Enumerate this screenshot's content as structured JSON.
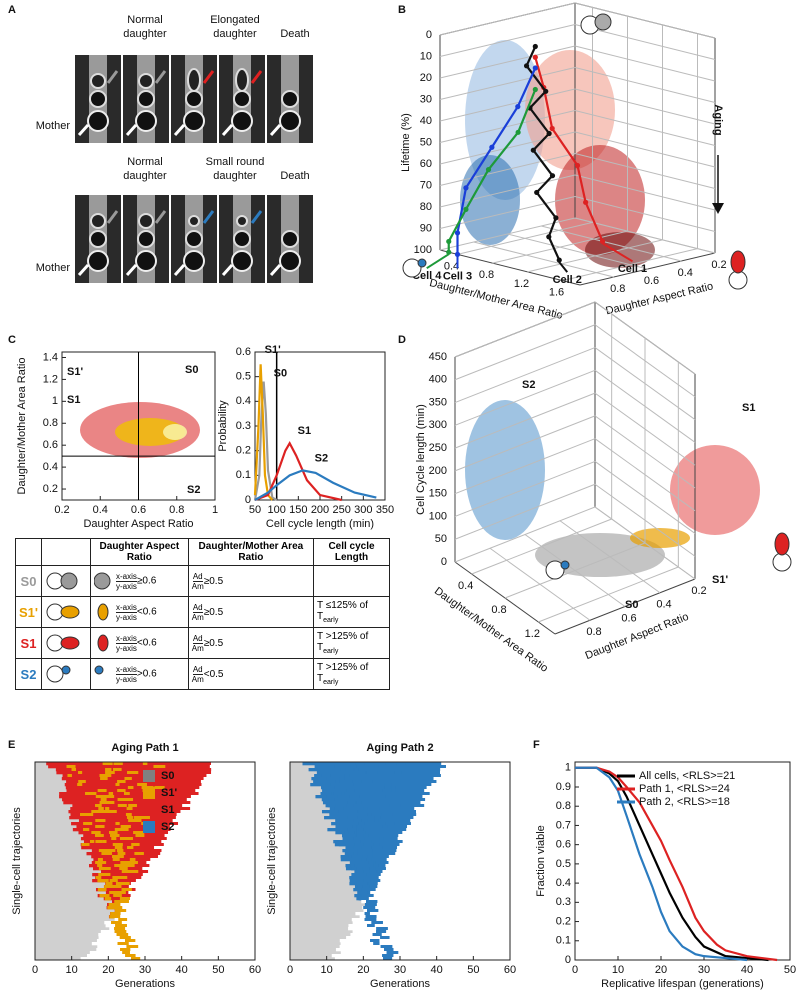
{
  "panels": [
    "A",
    "B",
    "C",
    "D",
    "E",
    "F"
  ],
  "panel_a": {
    "top": [
      [
        "Normal",
        "daughter"
      ],
      [
        "Elongated",
        "daughter"
      ],
      [
        "Death"
      ]
    ],
    "bottom": [
      [
        "Normal",
        "daughter"
      ],
      [
        "Small round",
        "daughter"
      ],
      [
        "Death"
      ]
    ],
    "mother": "Mother"
  },
  "table": {
    "header": [
      "Daughter Aspect Ratio",
      "Daughter/Mother Area Ratio",
      "Cell cycle Length"
    ],
    "aspect_num": "x-axis",
    "aspect_den": "y-axis",
    "area_num": "Ad",
    "area_den": "Am",
    "rows": [
      {
        "state": "S0",
        "color": "#9a9a9a",
        "icon": "round",
        "aspect_cond": "≥0.6",
        "area_cond": "≥0.5"
      },
      {
        "state": "S1'",
        "color": "#e8a000",
        "icon": "elongated",
        "aspect_cond": "<0.6",
        "area_cond": "≥0.5",
        "length": "T ≤125% of T",
        "length_sub": "early"
      },
      {
        "state": "S1",
        "color": "#dd2222",
        "icon": "elongated",
        "aspect_cond": "<0.6",
        "area_cond": "≥0.5",
        "length": "T >125% of T",
        "length_sub": "early"
      },
      {
        "state": "S2",
        "color": "#2b7bbf",
        "icon": "small",
        "aspect_cond": ">0.6",
        "area_cond": "<0.5",
        "length": "T >125% of T",
        "length_sub": "early"
      }
    ]
  },
  "chart_data": [
    {
      "type": "scatter3d",
      "y_label": "Lifetime (%)",
      "ylim": [
        0,
        100
      ],
      "y_reversed": true,
      "yticks": [
        0,
        10,
        20,
        30,
        40,
        50,
        60,
        70,
        80,
        90,
        100
      ],
      "x_label": "Daughter/Mother Area Ratio",
      "xlim": [
        0.2,
        1.8
      ],
      "xticks": [
        0.4,
        0.8,
        1.2,
        1.6
      ],
      "z_label": "Daughter Aspect Ratio",
      "zlim": [
        1,
        0.2
      ],
      "zticks": [
        0.8,
        0.6,
        0.4,
        0.2
      ],
      "annotation": "Aging",
      "series": [
        {
          "name": "Cell 1",
          "color": "#dd2222",
          "x": [
            1.0,
            1.0,
            1.0,
            1.0,
            0.9,
            0.9
          ],
          "z": [
            0.85,
            0.8,
            0.75,
            0.6,
            0.5,
            0.4
          ],
          "values": [
            5,
            20,
            40,
            60,
            80,
            100
          ]
        },
        {
          "name": "Cell 2",
          "color": "#111111",
          "x": [
            1.0,
            0.9,
            1.1,
            0.9,
            1.1,
            0.9,
            1.1,
            0.9,
            1.1,
            1.0,
            1.1
          ],
          "z": [
            0.85,
            0.85,
            0.84,
            0.83,
            0.82,
            0.81,
            0.8,
            0.79,
            0.78,
            0.77,
            0.76
          ],
          "values": [
            0,
            10,
            20,
            30,
            40,
            50,
            60,
            70,
            80,
            90,
            100
          ]
        },
        {
          "name": "Cell 3",
          "color": "#1a3fd8",
          "x": [
            1.0,
            0.8,
            0.6,
            0.4,
            0.4,
            0.4
          ],
          "z": [
            0.85,
            0.85,
            0.9,
            0.95,
            1.0,
            1.0
          ],
          "values": [
            10,
            30,
            50,
            70,
            90,
            100
          ]
        },
        {
          "name": "Cell 4",
          "color": "#1e9a3a",
          "x": [
            1.0,
            0.9,
            0.6,
            0.4,
            0.3,
            0.3
          ],
          "z": [
            0.85,
            0.9,
            0.92,
            0.95,
            1.0,
            1.0
          ],
          "values": [
            20,
            40,
            60,
            80,
            95,
            100
          ]
        }
      ]
    },
    {
      "type": "scatter",
      "x_label": "Daughter Aspect Ratio",
      "y_label": "Daughter/Mother Area Ratio",
      "xlim": [
        0.2,
        1
      ],
      "xticks": [
        0.2,
        0.4,
        0.6,
        0.8,
        1
      ],
      "ylim": [
        0.1,
        1.45
      ],
      "yticks": [
        0.2,
        0.4,
        0.6,
        0.8,
        1,
        1.2,
        1.4
      ],
      "thresholds": {
        "x": 0.6,
        "y": 0.5
      },
      "labels": [
        {
          "text": "S1'",
          "color": "#e8a000"
        },
        {
          "text": "S0",
          "color": "#9a9a9a"
        },
        {
          "text": "S1",
          "color": "#dd2222"
        },
        {
          "text": "S2",
          "color": "#2b7bbf"
        }
      ]
    },
    {
      "type": "line",
      "x_label": "Cell cycle length (min)",
      "y_label": "Probability",
      "xlim": [
        50,
        350
      ],
      "xticks": [
        50,
        100,
        150,
        200,
        250,
        300,
        350
      ],
      "ylim": [
        0,
        0.6
      ],
      "yticks": [
        0,
        0.1,
        0.2,
        0.3,
        0.4,
        0.5,
        0.6
      ],
      "reference_x": 100,
      "series": [
        {
          "name": "S0",
          "color": "#9a9a9a",
          "x": [
            50,
            60,
            65,
            70,
            75,
            80,
            90,
            100
          ],
          "values": [
            0,
            0.1,
            0.35,
            0.48,
            0.35,
            0.12,
            0.01,
            0
          ]
        },
        {
          "name": "S1'",
          "color": "#e8a000",
          "x": [
            50,
            58,
            63,
            68,
            73,
            80,
            90
          ],
          "values": [
            0.02,
            0.3,
            0.55,
            0.35,
            0.1,
            0.02,
            0
          ]
        },
        {
          "name": "S1",
          "color": "#dd2222",
          "x": [
            50,
            80,
            100,
            120,
            130,
            145,
            170,
            200,
            250
          ],
          "values": [
            0,
            0.02,
            0.1,
            0.2,
            0.23,
            0.18,
            0.08,
            0.02,
            0
          ]
        },
        {
          "name": "S2",
          "color": "#2b7bbf",
          "x": [
            50,
            80,
            100,
            130,
            160,
            190,
            230,
            280,
            330
          ],
          "values": [
            0,
            0.03,
            0.06,
            0.1,
            0.12,
            0.11,
            0.07,
            0.03,
            0.01
          ]
        }
      ]
    },
    {
      "type": "scatter3d",
      "y_label": "Cell Cycle length (min)",
      "ylim": [
        0,
        450
      ],
      "yticks": [
        0,
        50,
        100,
        150,
        200,
        250,
        300,
        350,
        400,
        450
      ],
      "x_label": "Daughter/Mother Area Ratio",
      "xlim": [
        0.2,
        1.4
      ],
      "xticks": [
        0.4,
        0.8,
        1.2
      ],
      "z_label": "Daughter Aspect Ratio",
      "zlim": [
        1,
        0.2
      ],
      "zticks": [
        0.8,
        0.6,
        0.4,
        0.2
      ],
      "labels": [
        {
          "text": "S2",
          "color": "#2b7bbf"
        },
        {
          "text": "S1",
          "color": "#dd2222"
        },
        {
          "text": "S1'",
          "color": "#e8a000"
        },
        {
          "text": "S0",
          "color": "#9a9a9a"
        }
      ]
    },
    {
      "type": "heatmap",
      "title": "Aging Path 1",
      "x_label": "Generations",
      "y_label": "Single-cell trajectories",
      "xlim": [
        0,
        60
      ],
      "xticks": [
        0,
        10,
        20,
        30,
        40,
        50,
        60
      ],
      "palette": [
        "#e8a000",
        "#dd2222"
      ],
      "legend": [
        {
          "name": "S0",
          "color": "#808080"
        },
        {
          "name": "S1'",
          "color": "#e8a000"
        },
        {
          "name": "S1",
          "color": "#dd2222"
        },
        {
          "name": "S2",
          "color": "#2b7bbf"
        }
      ]
    },
    {
      "type": "heatmap",
      "title": "Aging Path 2",
      "x_label": "Generations",
      "y_label": "Single-cell trajectories",
      "xlim": [
        0,
        60
      ],
      "xticks": [
        0,
        10,
        20,
        30,
        40,
        50,
        60
      ],
      "palette": [
        "#2b7bbf",
        "#2b7bbf"
      ]
    },
    {
      "type": "line",
      "x_label": "Replicative lifespan (generations)",
      "y_label": "Fraction viable",
      "xlim": [
        0,
        50
      ],
      "xticks": [
        0,
        10,
        20,
        30,
        40,
        50
      ],
      "ylim": [
        0,
        1.03
      ],
      "yticks": [
        0,
        0.1,
        0.2,
        0.3,
        0.4,
        0.5,
        0.6,
        0.7,
        0.8,
        0.9,
        1
      ],
      "legend": "upper right",
      "series": [
        {
          "name": "All cells, <RLS>=21",
          "color": "#000000",
          "x": [
            0,
            5,
            8,
            10,
            12,
            15,
            18,
            20,
            22,
            25,
            28,
            30,
            35,
            40,
            45
          ],
          "values": [
            1,
            1,
            0.97,
            0.93,
            0.85,
            0.7,
            0.55,
            0.45,
            0.35,
            0.22,
            0.12,
            0.07,
            0.02,
            0.01,
            0
          ]
        },
        {
          "name": "Path 1, <RLS>=24",
          "color": "#dd2222",
          "x": [
            0,
            5,
            8,
            10,
            12,
            15,
            18,
            20,
            22,
            25,
            28,
            30,
            33,
            35,
            40,
            47
          ],
          "values": [
            1,
            1,
            0.98,
            0.95,
            0.9,
            0.82,
            0.7,
            0.62,
            0.52,
            0.38,
            0.22,
            0.15,
            0.08,
            0.05,
            0.02,
            0
          ]
        },
        {
          "name": "Path 2, <RLS>=18",
          "color": "#2b7bbf",
          "x": [
            0,
            5,
            8,
            10,
            12,
            15,
            18,
            20,
            22,
            25,
            28,
            30,
            35,
            40
          ],
          "values": [
            1,
            1,
            0.95,
            0.88,
            0.75,
            0.55,
            0.38,
            0.25,
            0.15,
            0.07,
            0.03,
            0.02,
            0.01,
            0
          ]
        }
      ]
    }
  ]
}
